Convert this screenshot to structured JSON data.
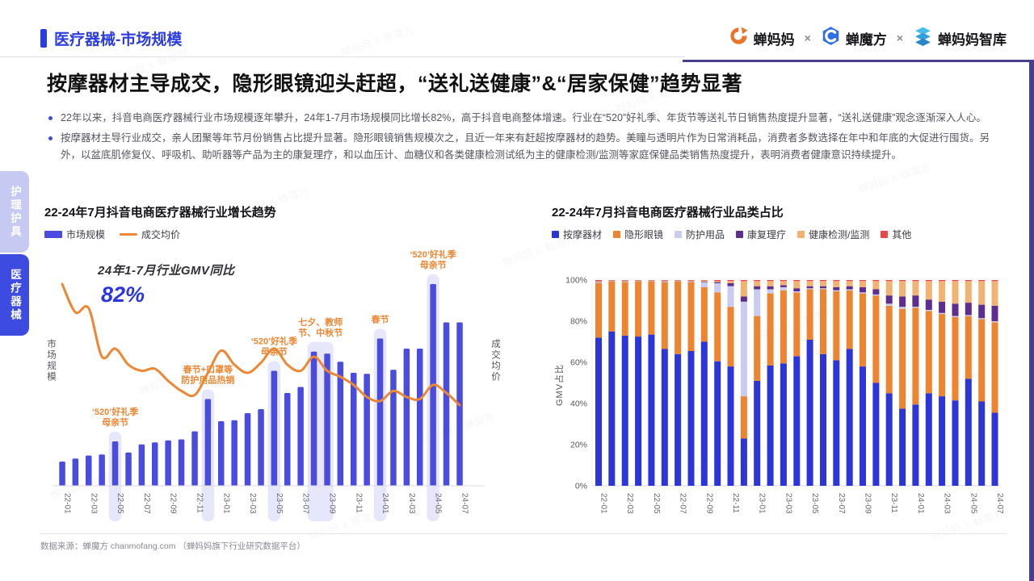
{
  "header": {
    "section_title": "医疗器械-市场规模",
    "logos": [
      "蝉妈妈",
      "蝉魔方",
      "蝉妈妈智库"
    ],
    "logo_separator": "×"
  },
  "headline": "按摩器材主导成交，隐形眼镜迎头赶超，“送礼送健康”&“居家保健”趋势显著",
  "bullets": [
    "22年以来，抖音电商医疗器械行业市场规模逐年攀升，24年1-7月市场规模同比增长82%，高于抖音电商整体增速。行业在“520”好礼季、年货节等送礼节日销售热度提升显著，“送礼送健康”观念逐渐深入人心。",
    "按摩器材主导行业成交，亲人团聚等年节月份销售占比提升显著。隐形眼镜销售规模次之，且近一年来有赶超按摩器材的趋势。美瞳与透明片作为日常消耗品，消费者多数选择在年中和年底的大促进行囤货。另外，以盆底肌修复仪、呼吸机、助听器等产品为主的康复理疗，和以血压计、血糖仪和各类健康检测试纸为主的健康检测/监测等家庭保健品类销售热度提升，表明消费者健康意识持续提升。"
  ],
  "sidebar": {
    "tabs": [
      {
        "label": "护理护具",
        "active": false
      },
      {
        "label": "医疗器械",
        "active": true
      }
    ]
  },
  "watermark": "蝉妈妈 X 蝉魔方",
  "footer": {
    "text": "数据来源：蝉魔方 chanmofang.com （蝉妈妈旗下行业研究数据平台）"
  },
  "chart_data": [
    {
      "type": "bar+line",
      "title": "22-24年7月抖音电商医疗器械行业增长趋势",
      "ylabel_left": "市场规模",
      "ylabel_right": "成交均价",
      "colors": {
        "bar": "#4a4ce0",
        "line": "#ed8733",
        "band": "#e2e3f9",
        "annotation": "#ed8733"
      },
      "callout": {
        "label": "24年1-7月行业GMV同比",
        "value": "82%"
      },
      "categories": [
        "22-01",
        "22-02",
        "22-03",
        "22-04",
        "22-05",
        "22-06",
        "22-07",
        "22-08",
        "22-09",
        "22-10",
        "22-11",
        "22-12",
        "23-01",
        "23-02",
        "23-03",
        "23-04",
        "23-05",
        "23-06",
        "23-07",
        "23-08",
        "23-09",
        "23-10",
        "23-11",
        "23-12",
        "24-01",
        "24-02",
        "24-03",
        "24-04",
        "24-05",
        "24-06",
        "24-07"
      ],
      "series": [
        {
          "name": "市场规模",
          "type": "bar",
          "values": [
            12,
            13.5,
            15,
            15.5,
            22,
            16.5,
            20.5,
            21.5,
            22.5,
            23,
            27,
            43,
            32,
            32.5,
            36,
            38,
            57,
            46,
            49,
            66.5,
            65.5,
            61.5,
            56,
            55.5,
            73,
            57.5,
            68,
            68,
            100,
            81,
            81
          ]
        },
        {
          "name": "成交均价",
          "type": "line",
          "values": [
            100,
            86,
            88,
            64,
            68,
            60,
            57,
            58,
            52,
            47,
            45,
            56,
            67,
            60,
            56,
            61,
            68,
            60,
            57,
            64,
            57,
            54,
            50,
            44,
            42,
            47,
            44,
            43,
            50,
            46,
            40
          ]
        }
      ],
      "highlight_bands": [
        {
          "month": "22-05",
          "span": 1,
          "label": [
            "‘520’好礼季",
            "母亲节"
          ]
        },
        {
          "month": "22-12",
          "span": 1,
          "label": [
            "春节+口罩等",
            "防护用品热销"
          ]
        },
        {
          "month": "23-05",
          "span": 1,
          "label": [
            "‘520’好礼季",
            "母亲节"
          ]
        },
        {
          "month": "23-08",
          "span": 2,
          "label": [
            "七夕、教师",
            "节、中秋节"
          ]
        },
        {
          "month": "24-01",
          "span": 1,
          "label": [
            "春节"
          ]
        },
        {
          "month": "24-05",
          "span": 1,
          "label": [
            "‘520’好礼季",
            "母亲节"
          ]
        }
      ],
      "note": "相对规模指数，无数值坐标轴"
    },
    {
      "type": "stacked-bar-100",
      "title": "22-24年7月抖音电商医疗器械行业品类占比",
      "ylabel": "GMV占比",
      "yticks": [
        "0%",
        "20%",
        "40%",
        "60%",
        "80%",
        "100%"
      ],
      "ylim": [
        0,
        100
      ],
      "categories": [
        "22-01",
        "22-02",
        "22-03",
        "22-04",
        "22-05",
        "22-06",
        "22-07",
        "22-08",
        "22-09",
        "22-10",
        "22-11",
        "22-12",
        "23-01",
        "23-02",
        "23-03",
        "23-04",
        "23-05",
        "23-06",
        "23-07",
        "23-08",
        "23-09",
        "23-10",
        "23-11",
        "23-12",
        "24-01",
        "24-02",
        "24-03",
        "24-04",
        "24-05",
        "24-06",
        "24-07"
      ],
      "series": [
        {
          "name": "按摩器材",
          "color": "#2b35d8",
          "values": [
            72,
            75,
            73,
            72.5,
            73.5,
            66.5,
            64,
            65.5,
            70,
            60.5,
            58,
            23,
            51,
            58.5,
            59.5,
            63,
            71,
            64,
            61,
            66.5,
            58,
            50,
            45,
            37.5,
            39.5,
            45,
            43.5,
            41.5,
            52,
            41,
            35.5
          ]
        },
        {
          "name": "隐形眼镜",
          "color": "#ef8430",
          "values": [
            26.5,
            24.5,
            26,
            27,
            26,
            32.5,
            35.5,
            33.5,
            26.5,
            33.5,
            29,
            20.5,
            31.5,
            35,
            35.5,
            31,
            24.5,
            31.5,
            33.5,
            28.5,
            35.5,
            42.5,
            42.5,
            48.5,
            47,
            40,
            40,
            40.5,
            30.5,
            40,
            44
          ]
        },
        {
          "name": "防护用品",
          "color": "#c9cbf1",
          "values": [
            0.3,
            0.2,
            0.3,
            0.2,
            0.2,
            0.3,
            0.2,
            0.3,
            2.5,
            4.5,
            10,
            46,
            13,
            2,
            1.5,
            0.5,
            0.5,
            0.5,
            0.5,
            0.5,
            0.5,
            0.5,
            1,
            1,
            0.5,
            0.5,
            0.5,
            0.5,
            0.5,
            0.5,
            0.5
          ]
        },
        {
          "name": "康复理疗",
          "color": "#5e2d90",
          "values": [
            0.2,
            0.1,
            0.2,
            0.1,
            0.1,
            0.2,
            0.1,
            0.2,
            0.3,
            0.5,
            1.5,
            2.5,
            1.5,
            1.5,
            1,
            1.5,
            1,
            1,
            1.5,
            1.5,
            2.5,
            2.5,
            4,
            5,
            5.5,
            5,
            5.5,
            6,
            6,
            6.5,
            7.5
          ]
        },
        {
          "name": "健康检测/监测",
          "color": "#f2b272",
          "values": [
            0.5,
            0.1,
            0.3,
            0.1,
            0.1,
            0.3,
            0.1,
            0.3,
            0.5,
            0.5,
            1,
            7.5,
            2.5,
            2.5,
            2,
            3.5,
            2.5,
            2.5,
            3,
            2.5,
            3,
            4,
            7,
            7.5,
            7,
            9,
            10,
            11,
            10.5,
            11.5,
            12
          ]
        },
        {
          "name": "其他",
          "color": "#e84749",
          "values": [
            0.5,
            0.1,
            0.2,
            0.1,
            0.1,
            0.2,
            0.1,
            0.2,
            0.2,
            0.5,
            0.5,
            0.5,
            0.5,
            0.5,
            0.5,
            0.5,
            0.5,
            0.5,
            0.5,
            0.5,
            0.5,
            0.5,
            0.5,
            0.5,
            0.5,
            0.5,
            0.5,
            0.5,
            0.5,
            0.5,
            0.5
          ]
        }
      ]
    }
  ]
}
